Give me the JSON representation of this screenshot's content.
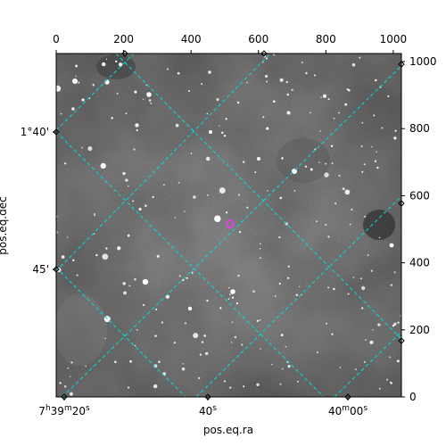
{
  "figure": {
    "xlabel": "pos.eq.ra",
    "ylabel": "pos.eq.dec",
    "pixel_axis_top": {
      "ticks": [
        0,
        200,
        400,
        600,
        800,
        1000
      ],
      "range": [
        0,
        1024
      ]
    },
    "pixel_axis_right": {
      "ticks": [
        0,
        200,
        400,
        600,
        800,
        1000
      ],
      "range": [
        0,
        1024
      ]
    },
    "ra_ticks": [
      {
        "h": "7",
        "m": "39",
        "s": "20"
      },
      {
        "s": "40"
      },
      {
        "m": "40",
        "s": "00"
      }
    ],
    "dec_ticks": [
      "1°40'",
      "45'"
    ],
    "colors": {
      "grid": "#00e0e0",
      "marker": "#ff33ff",
      "background": "#7a7a7a"
    },
    "marker": {
      "x": 517,
      "y": 512,
      "shape": "circle"
    },
    "image": "grayscale sky image with stars and dark nebulosity"
  }
}
